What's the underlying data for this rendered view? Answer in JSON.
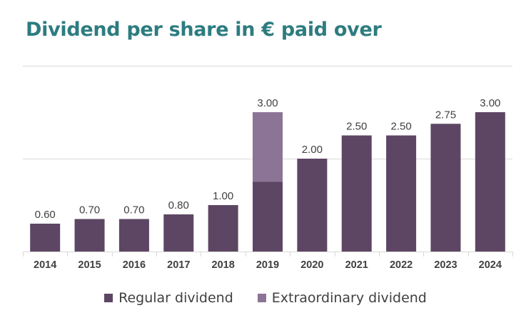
{
  "title": "Dividend per share in € paid over",
  "chart_data": {
    "type": "bar",
    "stacked": true,
    "title": "Dividend per share in € paid over",
    "categories": [
      "2014",
      "2015",
      "2016",
      "2017",
      "2018",
      "2019",
      "2020",
      "2021",
      "2022",
      "2023",
      "2024"
    ],
    "series": [
      {
        "name": "Regular dividend",
        "color": "#5d4663",
        "values": [
          0.6,
          0.7,
          0.7,
          0.8,
          1.0,
          1.5,
          2.0,
          2.5,
          2.5,
          2.75,
          3.0
        ]
      },
      {
        "name": "Extraordinary dividend",
        "color": "#8c7497",
        "values": [
          0,
          0,
          0,
          0,
          0,
          1.5,
          0,
          0,
          0,
          0,
          0
        ]
      }
    ],
    "total_labels": [
      "0.60",
      "0.70",
      "0.70",
      "0.80",
      "1.00",
      "3.00",
      "2.00",
      "2.50",
      "2.50",
      "2.75",
      "3.00"
    ],
    "ylim": [
      0,
      4
    ],
    "gridlines": [
      2,
      4
    ],
    "xlabel": "",
    "ylabel": "",
    "legend_position": "bottom"
  }
}
